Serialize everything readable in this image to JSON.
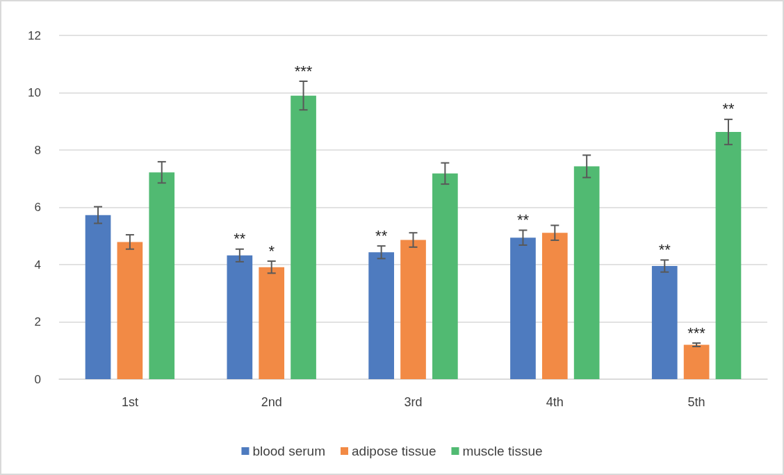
{
  "chart_data": {
    "type": "bar",
    "categories": [
      "1st",
      "2nd",
      "3rd",
      "4th",
      "5th"
    ],
    "series": [
      {
        "name": "blood serum",
        "color": "#4e7bbf",
        "values": [
          5.73,
          4.32,
          4.43,
          4.94,
          3.95
        ],
        "errors": [
          0.29,
          0.22,
          0.22,
          0.26,
          0.21
        ],
        "value_labels": [
          null,
          "**",
          "**",
          "**",
          "**"
        ]
      },
      {
        "name": "adipose tissue",
        "color": "#f28a45",
        "values": [
          4.79,
          3.91,
          4.86,
          5.11,
          1.2
        ],
        "errors": [
          0.25,
          0.21,
          0.25,
          0.26,
          0.06
        ],
        "value_labels": [
          null,
          "*",
          null,
          null,
          "***"
        ]
      },
      {
        "name": "muscle tissue",
        "color": "#51ba72",
        "values": [
          7.22,
          9.9,
          7.18,
          7.43,
          8.63
        ],
        "errors": [
          0.37,
          0.5,
          0.37,
          0.39,
          0.44
        ],
        "value_labels": [
          null,
          "***",
          null,
          null,
          "**"
        ]
      }
    ],
    "ylim": [
      0,
      12
    ],
    "yticks": [
      0,
      2,
      4,
      6,
      8,
      10,
      12
    ],
    "grid": "y",
    "legend": "bottom"
  }
}
